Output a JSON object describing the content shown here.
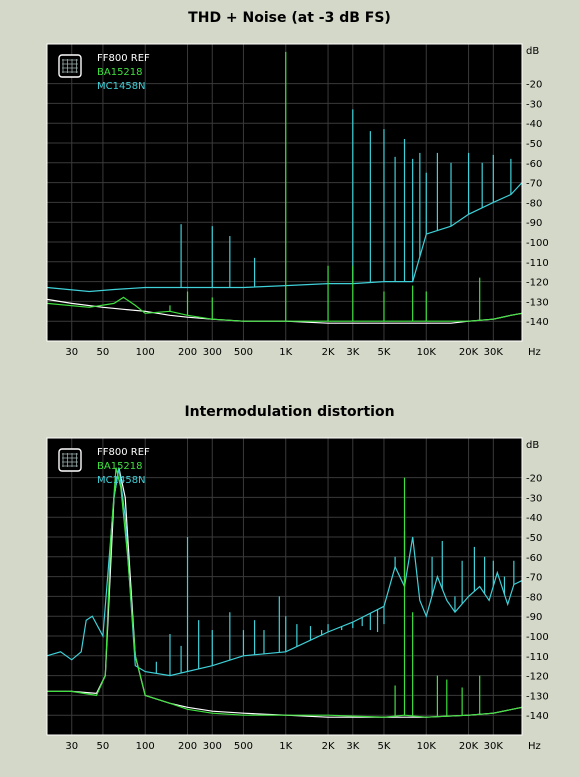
{
  "chart_data": [
    {
      "type": "line",
      "title": "THD + Noise (at -3 dB FS)",
      "x_scale": "log",
      "xlim": [
        20,
        48000
      ],
      "ylim": [
        -150,
        0
      ],
      "grid": true,
      "legend_position": "top-left",
      "x_ticks": [
        {
          "value": 30,
          "label": "30"
        },
        {
          "value": 50,
          "label": "50"
        },
        {
          "value": 100,
          "label": "100"
        },
        {
          "value": 200,
          "label": "200"
        },
        {
          "value": 300,
          "label": "300"
        },
        {
          "value": 500,
          "label": "500"
        },
        {
          "value": 1000,
          "label": "1K"
        },
        {
          "value": 2000,
          "label": "2K"
        },
        {
          "value": 3000,
          "label": "3K"
        },
        {
          "value": 5000,
          "label": "5K"
        },
        {
          "value": 10000,
          "label": "10K"
        },
        {
          "value": 20000,
          "label": "20K"
        },
        {
          "value": 30000,
          "label": "30K"
        }
      ],
      "x_unit": "Hz",
      "y_ticks": [
        -20,
        -30,
        -40,
        -50,
        -60,
        -70,
        -80,
        -90,
        -100,
        -110,
        -120,
        -130,
        -140
      ],
      "y_unit": "dB",
      "series": [
        {
          "name": "FF800 REF",
          "color": "#ffffff",
          "points": [
            [
              20,
              -129
            ],
            [
              30,
              -131
            ],
            [
              50,
              -133
            ],
            [
              70,
              -134
            ],
            [
              100,
              -135
            ],
            [
              150,
              -137
            ],
            [
              200,
              -138
            ],
            [
              300,
              -139
            ],
            [
              500,
              -140
            ],
            [
              700,
              -140
            ],
            [
              1000,
              -140
            ],
            [
              2000,
              -141
            ],
            [
              3000,
              -141
            ],
            [
              5000,
              -141
            ],
            [
              10000,
              -141
            ],
            [
              15000,
              -141
            ],
            [
              20000,
              -140
            ],
            [
              30000,
              -139
            ],
            [
              40000,
              -137
            ],
            [
              48000,
              -136
            ]
          ]
        },
        {
          "name": "BA15218",
          "color": "#3fe03f",
          "points": [
            [
              20,
              -131
            ],
            [
              40,
              -133
            ],
            [
              60,
              -131
            ],
            [
              70,
              -128
            ],
            [
              85,
              -132
            ],
            [
              100,
              -136
            ],
            [
              150,
              -135
            ],
            [
              200,
              -137
            ],
            [
              300,
              -139
            ],
            [
              500,
              -140
            ],
            [
              700,
              -140
            ],
            [
              1000,
              -140
            ],
            [
              2000,
              -140
            ],
            [
              5000,
              -140
            ],
            [
              10000,
              -140
            ],
            [
              20000,
              -140
            ],
            [
              30000,
              -139
            ],
            [
              40000,
              -137
            ],
            [
              48000,
              -136
            ]
          ],
          "peaks": [
            [
              1000,
              -4
            ],
            [
              2000,
              -112
            ],
            [
              3000,
              -112
            ],
            [
              5000,
              -125
            ],
            [
              8000,
              -122
            ],
            [
              10000,
              -125
            ],
            [
              24000,
              -118
            ],
            [
              150,
              -132
            ],
            [
              200,
              -125
            ],
            [
              300,
              -128
            ]
          ]
        },
        {
          "name": "MC1458N",
          "color": "#3fd0d8",
          "points": [
            [
              20,
              -123
            ],
            [
              40,
              -125
            ],
            [
              60,
              -124
            ],
            [
              100,
              -123
            ],
            [
              200,
              -123
            ],
            [
              300,
              -123
            ],
            [
              500,
              -123
            ],
            [
              1000,
              -122
            ],
            [
              2000,
              -121
            ],
            [
              3000,
              -121
            ],
            [
              5000,
              -120
            ],
            [
              8000,
              -120
            ],
            [
              10000,
              -96
            ],
            [
              15000,
              -92
            ],
            [
              20000,
              -86
            ],
            [
              30000,
              -80
            ],
            [
              40000,
              -76
            ],
            [
              48000,
              -70
            ]
          ],
          "peaks": [
            [
              180,
              -91
            ],
            [
              300,
              -92
            ],
            [
              400,
              -97
            ],
            [
              600,
              -108
            ],
            [
              3000,
              -33
            ],
            [
              4000,
              -44
            ],
            [
              5000,
              -43
            ],
            [
              6000,
              -57
            ],
            [
              7000,
              -48
            ],
            [
              8000,
              -58
            ],
            [
              9000,
              -55
            ],
            [
              10000,
              -65
            ],
            [
              12000,
              -55
            ],
            [
              15000,
              -60
            ],
            [
              20000,
              -55
            ],
            [
              25000,
              -60
            ],
            [
              30000,
              -56
            ],
            [
              40000,
              -58
            ]
          ]
        }
      ]
    },
    {
      "type": "line",
      "title": "Intermodulation distortion",
      "x_scale": "log",
      "xlim": [
        20,
        48000
      ],
      "ylim": [
        -150,
        0
      ],
      "grid": true,
      "legend_position": "top-left",
      "x_ticks": [
        {
          "value": 30,
          "label": "30"
        },
        {
          "value": 50,
          "label": "50"
        },
        {
          "value": 100,
          "label": "100"
        },
        {
          "value": 200,
          "label": "200"
        },
        {
          "value": 300,
          "label": "300"
        },
        {
          "value": 500,
          "label": "500"
        },
        {
          "value": 1000,
          "label": "1K"
        },
        {
          "value": 2000,
          "label": "2K"
        },
        {
          "value": 3000,
          "label": "3K"
        },
        {
          "value": 5000,
          "label": "5K"
        },
        {
          "value": 10000,
          "label": "10K"
        },
        {
          "value": 20000,
          "label": "20K"
        },
        {
          "value": 30000,
          "label": "30K"
        }
      ],
      "x_unit": "Hz",
      "y_ticks": [
        -20,
        -30,
        -40,
        -50,
        -60,
        -70,
        -80,
        -90,
        -100,
        -110,
        -120,
        -130,
        -140
      ],
      "y_unit": "dB",
      "series": [
        {
          "name": "FF800 REF",
          "color": "#ffffff",
          "points": [
            [
              20,
              -128
            ],
            [
              30,
              -128
            ],
            [
              45,
              -129
            ],
            [
              52,
              -120
            ],
            [
              60,
              -30
            ],
            [
              65,
              -15
            ],
            [
              72,
              -30
            ],
            [
              85,
              -110
            ],
            [
              100,
              -130
            ],
            [
              150,
              -134
            ],
            [
              200,
              -136
            ],
            [
              300,
              -138
            ],
            [
              500,
              -139
            ],
            [
              1000,
              -140
            ],
            [
              2000,
              -141
            ],
            [
              5000,
              -141
            ],
            [
              10000,
              -141
            ],
            [
              20000,
              -140
            ],
            [
              30000,
              -139
            ],
            [
              48000,
              -136
            ]
          ]
        },
        {
          "name": "BA15218",
          "color": "#3fe03f",
          "points": [
            [
              20,
              -128
            ],
            [
              30,
              -128
            ],
            [
              45,
              -130
            ],
            [
              52,
              -120
            ],
            [
              57,
              -50
            ],
            [
              62,
              -15
            ],
            [
              67,
              -25
            ],
            [
              75,
              -60
            ],
            [
              85,
              -110
            ],
            [
              100,
              -130
            ],
            [
              150,
              -134
            ],
            [
              200,
              -137
            ],
            [
              300,
              -139
            ],
            [
              500,
              -140
            ],
            [
              1000,
              -140
            ],
            [
              2000,
              -140
            ],
            [
              5000,
              -141
            ],
            [
              7000,
              -140
            ],
            [
              10000,
              -141
            ],
            [
              20000,
              -140
            ],
            [
              30000,
              -139
            ],
            [
              48000,
              -136
            ]
          ],
          "peaks": [
            [
              7000,
              -20
            ],
            [
              8000,
              -88
            ],
            [
              6000,
              -125
            ],
            [
              12000,
              -120
            ],
            [
              14000,
              -122
            ],
            [
              18000,
              -126
            ],
            [
              24000,
              -120
            ]
          ]
        },
        {
          "name": "MC1458N",
          "color": "#3fd0d8",
          "points": [
            [
              20,
              -110
            ],
            [
              25,
              -108
            ],
            [
              30,
              -112
            ],
            [
              35,
              -108
            ],
            [
              38,
              -92
            ],
            [
              42,
              -90
            ],
            [
              50,
              -100
            ],
            [
              60,
              -30
            ],
            [
              65,
              -15
            ],
            [
              72,
              -40
            ],
            [
              85,
              -115
            ],
            [
              100,
              -118
            ],
            [
              150,
              -120
            ],
            [
              300,
              -115
            ],
            [
              500,
              -110
            ],
            [
              1000,
              -108
            ],
            [
              2000,
              -98
            ],
            [
              3000,
              -93
            ],
            [
              5000,
              -85
            ],
            [
              6000,
              -65
            ],
            [
              7000,
              -75
            ],
            [
              8000,
              -50
            ],
            [
              9000,
              -82
            ],
            [
              10000,
              -90
            ],
            [
              12000,
              -70
            ],
            [
              14000,
              -82
            ],
            [
              16000,
              -88
            ],
            [
              20000,
              -80
            ],
            [
              24000,
              -75
            ],
            [
              28000,
              -82
            ],
            [
              32000,
              -68
            ],
            [
              38000,
              -84
            ],
            [
              42000,
              -74
            ],
            [
              48000,
              -72
            ]
          ],
          "peaks": [
            [
              120,
              -113
            ],
            [
              150,
              -99
            ],
            [
              180,
              -105
            ],
            [
              200,
              -50
            ],
            [
              240,
              -92
            ],
            [
              300,
              -97
            ],
            [
              400,
              -88
            ],
            [
              500,
              -97
            ],
            [
              600,
              -92
            ],
            [
              700,
              -97
            ],
            [
              900,
              -80
            ],
            [
              1000,
              -90
            ],
            [
              1200,
              -94
            ],
            [
              1500,
              -95
            ],
            [
              1800,
              -97
            ],
            [
              2000,
              -94
            ],
            [
              2500,
              -97
            ],
            [
              3000,
              -96
            ],
            [
              3500,
              -95
            ],
            [
              4000,
              -97
            ],
            [
              4500,
              -98
            ],
            [
              5000,
              -94
            ],
            [
              6000,
              -60
            ],
            [
              7000,
              -47
            ],
            [
              11000,
              -60
            ],
            [
              13000,
              -52
            ],
            [
              16000,
              -80
            ],
            [
              18000,
              -62
            ],
            [
              22000,
              -55
            ],
            [
              26000,
              -60
            ],
            [
              30000,
              -62
            ],
            [
              36000,
              -70
            ],
            [
              42000,
              -62
            ]
          ]
        }
      ]
    }
  ]
}
